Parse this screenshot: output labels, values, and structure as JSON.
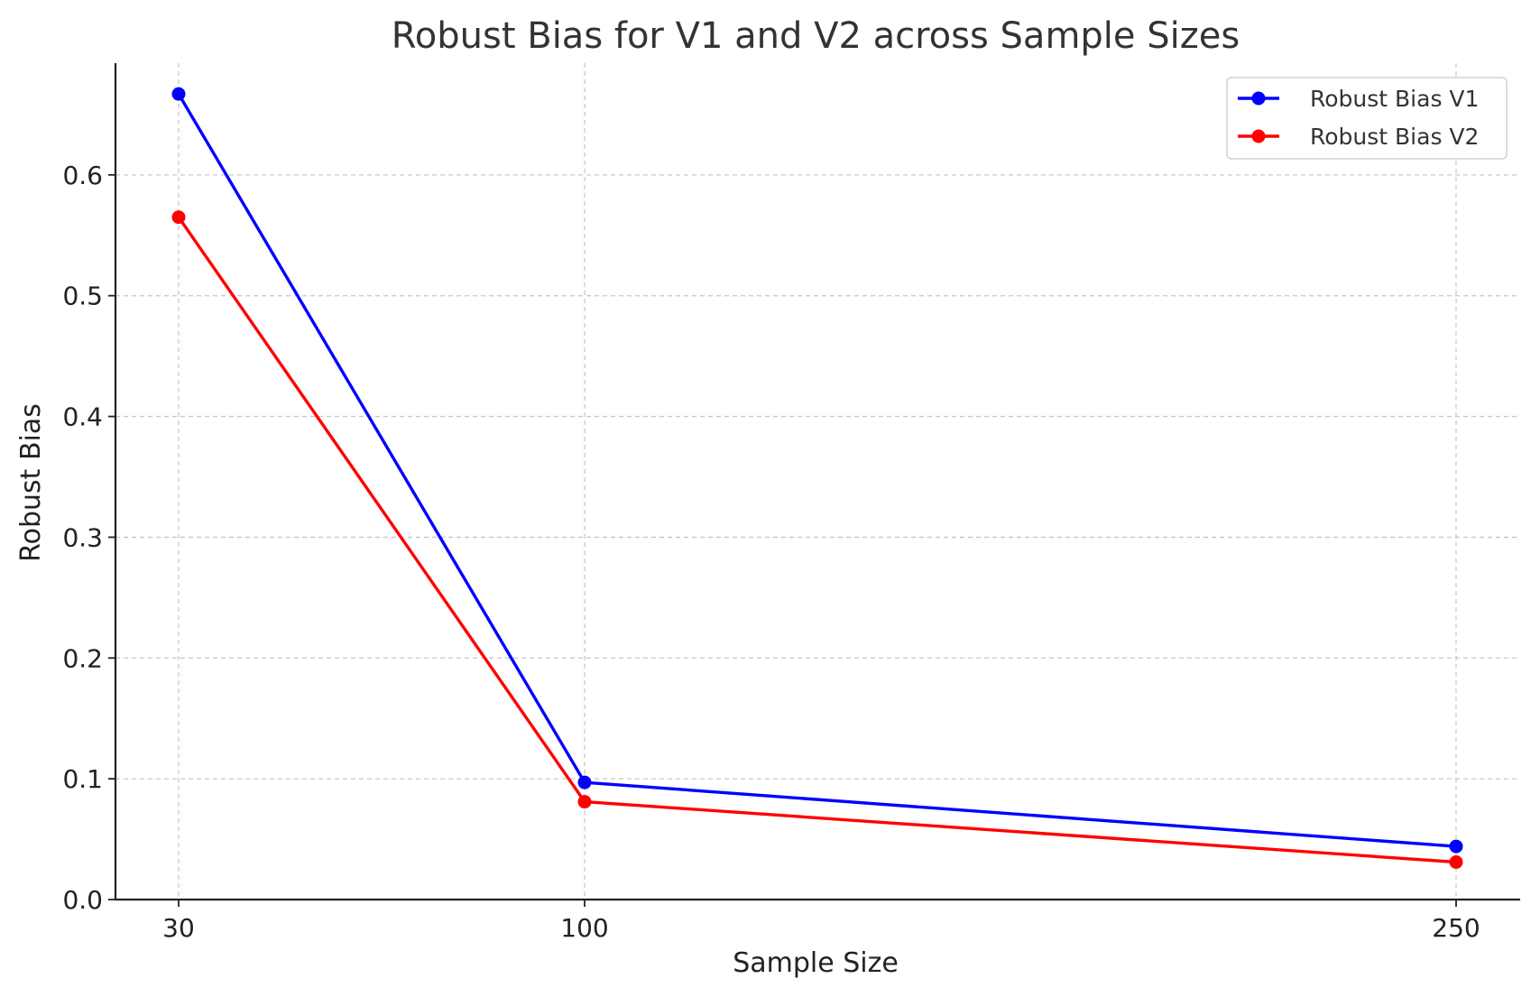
{
  "chart_data": {
    "type": "line",
    "title": "Robust Bias for V1 and V2 across Sample Sizes",
    "xlabel": "Sample Size",
    "ylabel": "Robust Bias",
    "categories": [
      "30",
      "100",
      "250"
    ],
    "ylim": [
      0,
      0.7
    ],
    "yticks": [
      "0.0",
      "0.1",
      "0.2",
      "0.3",
      "0.4",
      "0.5",
      "0.6"
    ],
    "grid": true,
    "legend_position": "top-right",
    "series": [
      {
        "name": "Robust Bias V1",
        "color": "#0000ff",
        "values": [
          0.667,
          0.097,
          0.044
        ]
      },
      {
        "name": "Robust Bias V2",
        "color": "#ff0000",
        "values": [
          0.565,
          0.081,
          0.031
        ]
      }
    ]
  }
}
